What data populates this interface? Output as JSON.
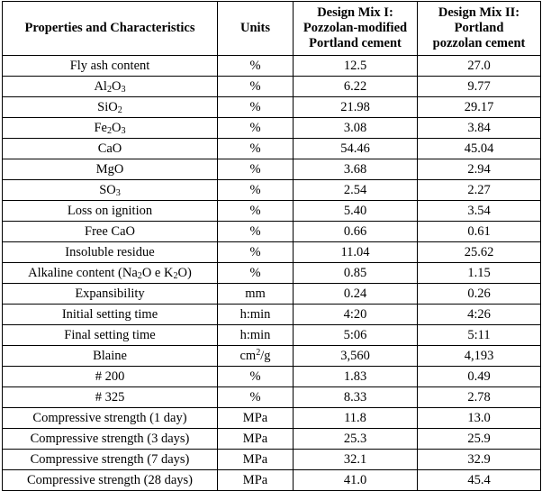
{
  "table": {
    "headers": [
      "Properties and Characteristics",
      "Units",
      "Design Mix I: Pozzolan-modified Portland cement",
      "Design Mix II: Portland pozzolan cement"
    ],
    "header_lines": {
      "c3": [
        "Design Mix I:",
        "Pozzolan-modified",
        "Portland cement"
      ],
      "c4": [
        "Design Mix II:",
        "Portland",
        "pozzolan cement"
      ]
    },
    "rows": [
      {
        "property": [
          {
            "t": "Fly ash content"
          }
        ],
        "unit": [
          {
            "t": "%"
          }
        ],
        "mix1": "12.5",
        "mix2": "27.0"
      },
      {
        "property": [
          {
            "t": "Al"
          },
          {
            "t": "2",
            "sub": true
          },
          {
            "t": "O"
          },
          {
            "t": "3",
            "sub": true
          }
        ],
        "unit": [
          {
            "t": "%"
          }
        ],
        "mix1": "6.22",
        "mix2": "9.77"
      },
      {
        "property": [
          {
            "t": "SiO"
          },
          {
            "t": "2",
            "sub": true
          }
        ],
        "unit": [
          {
            "t": "%"
          }
        ],
        "mix1": "21.98",
        "mix2": "29.17"
      },
      {
        "property": [
          {
            "t": "Fe"
          },
          {
            "t": "2",
            "sub": true
          },
          {
            "t": "O"
          },
          {
            "t": "3",
            "sub": true
          }
        ],
        "unit": [
          {
            "t": "%"
          }
        ],
        "mix1": "3.08",
        "mix2": "3.84"
      },
      {
        "property": [
          {
            "t": "CaO"
          }
        ],
        "unit": [
          {
            "t": "%"
          }
        ],
        "mix1": "54.46",
        "mix2": "45.04"
      },
      {
        "property": [
          {
            "t": "MgO"
          }
        ],
        "unit": [
          {
            "t": "%"
          }
        ],
        "mix1": "3.68",
        "mix2": "2.94"
      },
      {
        "property": [
          {
            "t": "SO"
          },
          {
            "t": "3",
            "sub": true
          }
        ],
        "unit": [
          {
            "t": "%"
          }
        ],
        "mix1": "2.54",
        "mix2": "2.27"
      },
      {
        "property": [
          {
            "t": "Loss on ignition"
          }
        ],
        "unit": [
          {
            "t": "%"
          }
        ],
        "mix1": "5.40",
        "mix2": "3.54"
      },
      {
        "property": [
          {
            "t": "Free CaO"
          }
        ],
        "unit": [
          {
            "t": "%"
          }
        ],
        "mix1": "0.66",
        "mix2": "0.61"
      },
      {
        "property": [
          {
            "t": "Insoluble residue"
          }
        ],
        "unit": [
          {
            "t": "%"
          }
        ],
        "mix1": "11.04",
        "mix2": "25.62"
      },
      {
        "property": [
          {
            "t": "Alkaline content (Na"
          },
          {
            "t": "2",
            "sub": true
          },
          {
            "t": "O e K"
          },
          {
            "t": "2",
            "sub": true
          },
          {
            "t": "O)"
          }
        ],
        "unit": [
          {
            "t": "%"
          }
        ],
        "mix1": "0.85",
        "mix2": "1.15"
      },
      {
        "property": [
          {
            "t": "Expansibility"
          }
        ],
        "unit": [
          {
            "t": "mm"
          }
        ],
        "mix1": "0.24",
        "mix2": "0.26"
      },
      {
        "property": [
          {
            "t": "Initial setting time"
          }
        ],
        "unit": [
          {
            "t": "h:min"
          }
        ],
        "mix1": "4:20",
        "mix2": "4:26"
      },
      {
        "property": [
          {
            "t": "Final setting time"
          }
        ],
        "unit": [
          {
            "t": "h:min"
          }
        ],
        "mix1": "5:06",
        "mix2": "5:11"
      },
      {
        "property": [
          {
            "t": "Blaine"
          }
        ],
        "unit": [
          {
            "t": "cm"
          },
          {
            "t": "2",
            "sup": true
          },
          {
            "t": "/g"
          }
        ],
        "mix1": "3,560",
        "mix2": "4,193"
      },
      {
        "property": [
          {
            "t": "# 200"
          }
        ],
        "unit": [
          {
            "t": "%"
          }
        ],
        "mix1": "1.83",
        "mix2": "0.49"
      },
      {
        "property": [
          {
            "t": "# 325"
          }
        ],
        "unit": [
          {
            "t": "%"
          }
        ],
        "mix1": "8.33",
        "mix2": "2.78"
      },
      {
        "property": [
          {
            "t": "Compressive strength (1 day)"
          }
        ],
        "unit": [
          {
            "t": "MPa"
          }
        ],
        "mix1": "11.8",
        "mix2": "13.0"
      },
      {
        "property": [
          {
            "t": "Compressive strength (3 days)"
          }
        ],
        "unit": [
          {
            "t": "MPa"
          }
        ],
        "mix1": "25.3",
        "mix2": "25.9"
      },
      {
        "property": [
          {
            "t": "Compressive strength (7 days)"
          }
        ],
        "unit": [
          {
            "t": "MPa"
          }
        ],
        "mix1": "32.1",
        "mix2": "32.9"
      },
      {
        "property": [
          {
            "t": "Compressive strength (28 days)"
          }
        ],
        "unit": [
          {
            "t": "MPa"
          }
        ],
        "mix1": "41.0",
        "mix2": "45.4"
      }
    ]
  }
}
